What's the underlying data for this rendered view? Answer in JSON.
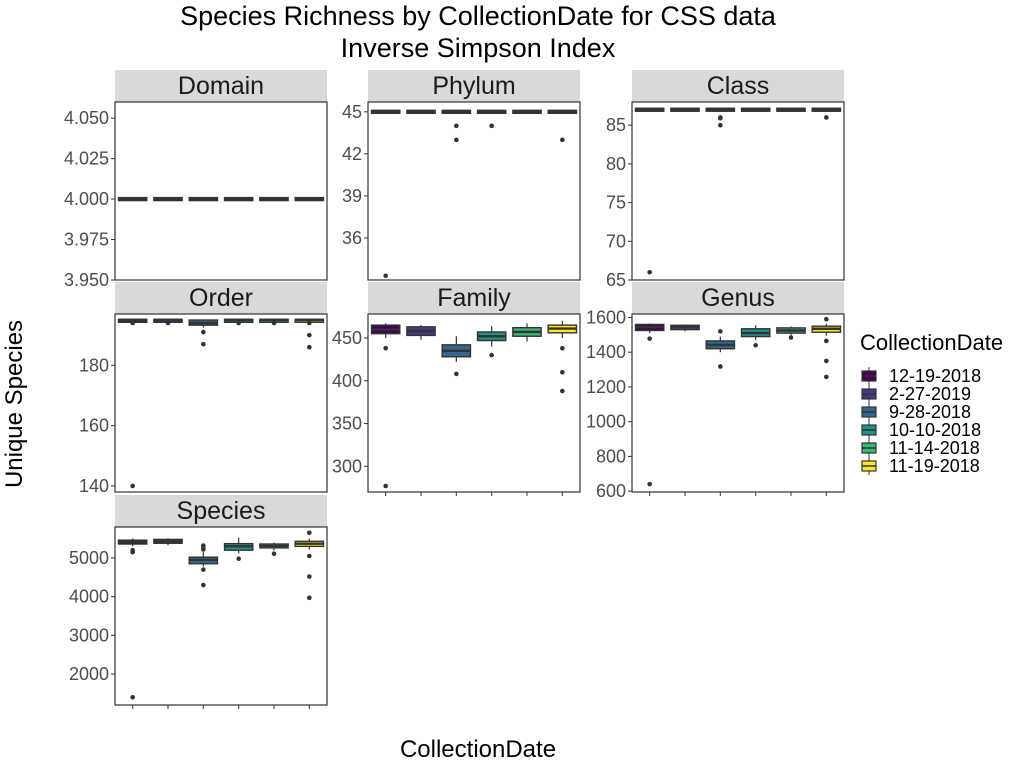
{
  "title_line1": "Species Richness by CollectionDate for CSS data",
  "title_line2": "Inverse Simpson Index",
  "xlabel": "CollectionDate",
  "ylabel": "Unique Species",
  "legend": {
    "title": "CollectionDate",
    "position": "right",
    "entries": [
      {
        "label": "12-19-2018",
        "color": "#440154"
      },
      {
        "label": "2-27-2019",
        "color": "#443A83"
      },
      {
        "label": "9-28-2018",
        "color": "#31688E"
      },
      {
        "label": "10-10-2018",
        "color": "#21908C"
      },
      {
        "label": "11-14-2018",
        "color": "#35B779"
      },
      {
        "label": "11-19-2018",
        "color": "#FDE725"
      }
    ]
  },
  "colors": {
    "strip_background": "#d9d9d9",
    "box_outline": "#333333",
    "tick": "#333333"
  },
  "chart_data": [
    {
      "type": "boxplot",
      "panel": "Domain",
      "categories": [
        "12-19-2018",
        "2-27-2019",
        "9-28-2018",
        "10-10-2018",
        "11-14-2018",
        "11-19-2018"
      ],
      "ylim": [
        3.95,
        4.06
      ],
      "yticks": [
        3.95,
        3.975,
        4.0,
        4.025,
        4.05
      ],
      "ytick_labels": [
        "3.950",
        "3.975",
        "4.000",
        "4.025",
        "4.050"
      ],
      "boxes": [
        {
          "q1": 4,
          "median": 4,
          "q3": 4,
          "wlo": 4,
          "whi": 4,
          "outliers": []
        },
        {
          "q1": 4,
          "median": 4,
          "q3": 4,
          "wlo": 4,
          "whi": 4,
          "outliers": []
        },
        {
          "q1": 4,
          "median": 4,
          "q3": 4,
          "wlo": 4,
          "whi": 4,
          "outliers": []
        },
        {
          "q1": 4,
          "median": 4,
          "q3": 4,
          "wlo": 4,
          "whi": 4,
          "outliers": []
        },
        {
          "q1": 4,
          "median": 4,
          "q3": 4,
          "wlo": 4,
          "whi": 4,
          "outliers": []
        },
        {
          "q1": 4,
          "median": 4,
          "q3": 4,
          "wlo": 4,
          "whi": 4,
          "outliers": []
        }
      ]
    },
    {
      "type": "boxplot",
      "panel": "Phylum",
      "categories": [
        "12-19-2018",
        "2-27-2019",
        "9-28-2018",
        "10-10-2018",
        "11-14-2018",
        "11-19-2018"
      ],
      "ylim": [
        33.0,
        45.7
      ],
      "yticks": [
        36,
        39,
        42,
        45
      ],
      "ytick_labels": [
        "36",
        "39",
        "42",
        "45"
      ],
      "boxes": [
        {
          "q1": 45,
          "median": 45,
          "q3": 45,
          "wlo": 45,
          "whi": 45,
          "outliers": [
            33.3
          ]
        },
        {
          "q1": 45,
          "median": 45,
          "q3": 45,
          "wlo": 45,
          "whi": 45,
          "outliers": []
        },
        {
          "q1": 45,
          "median": 45,
          "q3": 45,
          "wlo": 45,
          "whi": 45,
          "outliers": [
            44,
            43
          ]
        },
        {
          "q1": 45,
          "median": 45,
          "q3": 45,
          "wlo": 45,
          "whi": 45,
          "outliers": [
            44
          ]
        },
        {
          "q1": 45,
          "median": 45,
          "q3": 45,
          "wlo": 45,
          "whi": 45,
          "outliers": []
        },
        {
          "q1": 45,
          "median": 45,
          "q3": 45,
          "wlo": 45,
          "whi": 45,
          "outliers": [
            43
          ]
        }
      ]
    },
    {
      "type": "boxplot",
      "panel": "Class",
      "categories": [
        "12-19-2018",
        "2-27-2019",
        "9-28-2018",
        "10-10-2018",
        "11-14-2018",
        "11-19-2018"
      ],
      "ylim": [
        65.0,
        88.0
      ],
      "yticks": [
        65,
        70,
        75,
        80,
        85
      ],
      "ytick_labels": [
        "65",
        "70",
        "75",
        "80",
        "85"
      ],
      "boxes": [
        {
          "q1": 87,
          "median": 87,
          "q3": 87,
          "wlo": 87,
          "whi": 87,
          "outliers": [
            66
          ]
        },
        {
          "q1": 87,
          "median": 87,
          "q3": 87,
          "wlo": 87,
          "whi": 87,
          "outliers": []
        },
        {
          "q1": 87,
          "median": 87,
          "q3": 87,
          "wlo": 87,
          "whi": 87,
          "outliers": [
            86,
            85.9,
            85
          ]
        },
        {
          "q1": 87,
          "median": 87,
          "q3": 87,
          "wlo": 87,
          "whi": 87,
          "outliers": []
        },
        {
          "q1": 87,
          "median": 87,
          "q3": 87,
          "wlo": 87,
          "whi": 87,
          "outliers": []
        },
        {
          "q1": 87,
          "median": 87,
          "q3": 87,
          "wlo": 87,
          "whi": 87,
          "outliers": [
            86
          ]
        }
      ]
    },
    {
      "type": "boxplot",
      "panel": "Order",
      "categories": [
        "12-19-2018",
        "2-27-2019",
        "9-28-2018",
        "10-10-2018",
        "11-14-2018",
        "11-19-2018"
      ],
      "ylim": [
        138.0,
        197.0
      ],
      "yticks": [
        140,
        160,
        180
      ],
      "ytick_labels": [
        "140",
        "160",
        "180"
      ],
      "boxes": [
        {
          "q1": 194.5,
          "median": 195,
          "q3": 195,
          "wlo": 194,
          "whi": 195,
          "outliers": [
            194,
            140
          ]
        },
        {
          "q1": 194.5,
          "median": 195,
          "q3": 195,
          "wlo": 194,
          "whi": 195,
          "outliers": [
            194
          ]
        },
        {
          "q1": 193.3,
          "median": 194,
          "q3": 195,
          "wlo": 192.5,
          "whi": 195,
          "outliers": [
            191,
            187
          ]
        },
        {
          "q1": 194.5,
          "median": 195,
          "q3": 195,
          "wlo": 194,
          "whi": 195,
          "outliers": [
            194
          ]
        },
        {
          "q1": 194.5,
          "median": 195,
          "q3": 195,
          "wlo": 194,
          "whi": 195,
          "outliers": [
            194
          ]
        },
        {
          "q1": 194.5,
          "median": 195,
          "q3": 195,
          "wlo": 194,
          "whi": 195,
          "outliers": [
            194,
            190,
            186
          ]
        }
      ]
    },
    {
      "type": "boxplot",
      "panel": "Family",
      "categories": [
        "12-19-2018",
        "2-27-2019",
        "9-28-2018",
        "10-10-2018",
        "11-14-2018",
        "11-19-2018"
      ],
      "ylim": [
        270.0,
        478.0
      ],
      "yticks": [
        300,
        350,
        400,
        450
      ],
      "ytick_labels": [
        "300",
        "350",
        "400",
        "450"
      ],
      "boxes": [
        {
          "q1": 455,
          "median": 460,
          "q3": 465,
          "wlo": 450,
          "whi": 467,
          "outliers": [
            438,
            277
          ]
        },
        {
          "q1": 453,
          "median": 458,
          "q3": 463,
          "wlo": 448,
          "whi": 465,
          "outliers": []
        },
        {
          "q1": 428,
          "median": 435,
          "q3": 442,
          "wlo": 422,
          "whi": 452,
          "outliers": [
            408
          ]
        },
        {
          "q1": 447,
          "median": 452,
          "q3": 457,
          "wlo": 440,
          "whi": 464,
          "outliers": [
            430
          ]
        },
        {
          "q1": 452,
          "median": 457,
          "q3": 462,
          "wlo": 446,
          "whi": 467,
          "outliers": []
        },
        {
          "q1": 456,
          "median": 461,
          "q3": 465,
          "wlo": 450,
          "whi": 470,
          "outliers": [
            438,
            410,
            388
          ]
        }
      ]
    },
    {
      "type": "boxplot",
      "panel": "Genus",
      "categories": [
        "12-19-2018",
        "2-27-2019",
        "9-28-2018",
        "10-10-2018",
        "11-14-2018",
        "11-19-2018"
      ],
      "ylim": [
        595,
        1620
      ],
      "yticks": [
        600,
        800,
        1000,
        1200,
        1400,
        1600
      ],
      "ytick_labels": [
        "600",
        "800",
        "1000",
        "1200",
        "1400",
        "1600"
      ],
      "boxes": [
        {
          "q1": 1525,
          "median": 1545,
          "q3": 1560,
          "wlo": 1510,
          "whi": 1565,
          "outliers": [
            1478,
            640
          ]
        },
        {
          "q1": 1530,
          "median": 1545,
          "q3": 1555,
          "wlo": 1520,
          "whi": 1560,
          "outliers": []
        },
        {
          "q1": 1420,
          "median": 1442,
          "q3": 1465,
          "wlo": 1400,
          "whi": 1490,
          "outliers": [
            1520,
            1318
          ]
        },
        {
          "q1": 1490,
          "median": 1510,
          "q3": 1535,
          "wlo": 1470,
          "whi": 1555,
          "outliers": [
            1440
          ]
        },
        {
          "q1": 1510,
          "median": 1525,
          "q3": 1540,
          "wlo": 1500,
          "whi": 1548,
          "outliers": [
            1485
          ]
        },
        {
          "q1": 1515,
          "median": 1535,
          "q3": 1550,
          "wlo": 1495,
          "whi": 1565,
          "outliers": [
            1590,
            1465,
            1350,
            1258
          ]
        }
      ]
    },
    {
      "type": "boxplot",
      "panel": "Species",
      "categories": [
        "12-19-2018",
        "2-27-2019",
        "9-28-2018",
        "10-10-2018",
        "11-14-2018",
        "11-19-2018"
      ],
      "ylim": [
        1200,
        5800
      ],
      "yticks": [
        2000,
        3000,
        4000,
        5000
      ],
      "ytick_labels": [
        "2000",
        "3000",
        "4000",
        "5000"
      ],
      "boxes": [
        {
          "q1": 5360,
          "median": 5410,
          "q3": 5460,
          "wlo": 5300,
          "whi": 5500,
          "outliers": [
            5200,
            5150,
            1400
          ]
        },
        {
          "q1": 5380,
          "median": 5430,
          "q3": 5480,
          "wlo": 5330,
          "whi": 5510,
          "outliers": []
        },
        {
          "q1": 4850,
          "median": 4950,
          "q3": 5020,
          "wlo": 4780,
          "whi": 5150,
          "outliers": [
            5320,
            5250,
            5220,
            4700,
            4300
          ]
        },
        {
          "q1": 5200,
          "median": 5300,
          "q3": 5370,
          "wlo": 5120,
          "whi": 5520,
          "outliers": [
            4980
          ]
        },
        {
          "q1": 5260,
          "median": 5310,
          "q3": 5360,
          "wlo": 5200,
          "whi": 5400,
          "outliers": [
            5110
          ]
        },
        {
          "q1": 5300,
          "median": 5370,
          "q3": 5430,
          "wlo": 5220,
          "whi": 5500,
          "outliers": [
            5650,
            5050,
            4520,
            3970
          ]
        }
      ]
    }
  ]
}
